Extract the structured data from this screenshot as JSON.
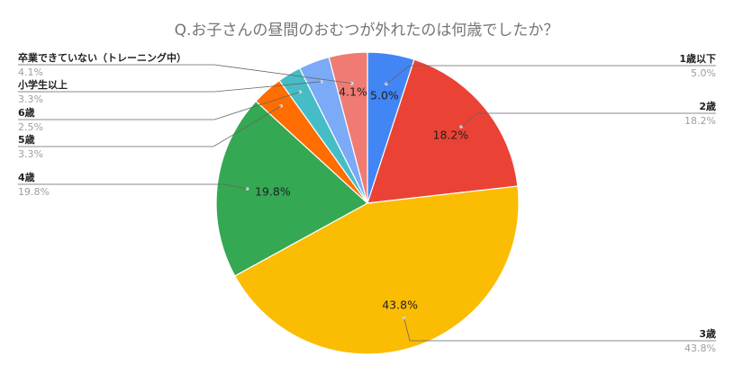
{
  "chart_data": {
    "type": "pie",
    "title": "Q.お子さんの昼間のおむつが外れたのは何歳でしたか？",
    "start_angle": "12 o'clock",
    "direction": "clockwise",
    "slices": [
      {
        "label": "1歳以下",
        "value": 5.0,
        "display": "5.0%",
        "color": "#4285F4"
      },
      {
        "label": "2歳",
        "value": 18.2,
        "display": "18.2%",
        "color": "#EA4335"
      },
      {
        "label": "3歳",
        "value": 43.8,
        "display": "43.8%",
        "color": "#FBBC04"
      },
      {
        "label": "4歳",
        "value": 19.8,
        "display": "19.8%",
        "color": "#34A853"
      },
      {
        "label": "5歳",
        "value": 3.3,
        "display": "3.3%",
        "color": "#FF6D01"
      },
      {
        "label": "6歳",
        "value": 2.5,
        "display": "2.5%",
        "color": "#46BDC6"
      },
      {
        "label": "小学生以上",
        "value": 3.3,
        "display": "3.3%",
        "color": "#7BAAF7"
      },
      {
        "label": "卒業できていない（トレーニング中）",
        "value": 4.1,
        "display": "4.1%",
        "color": "#F07B72"
      }
    ]
  }
}
